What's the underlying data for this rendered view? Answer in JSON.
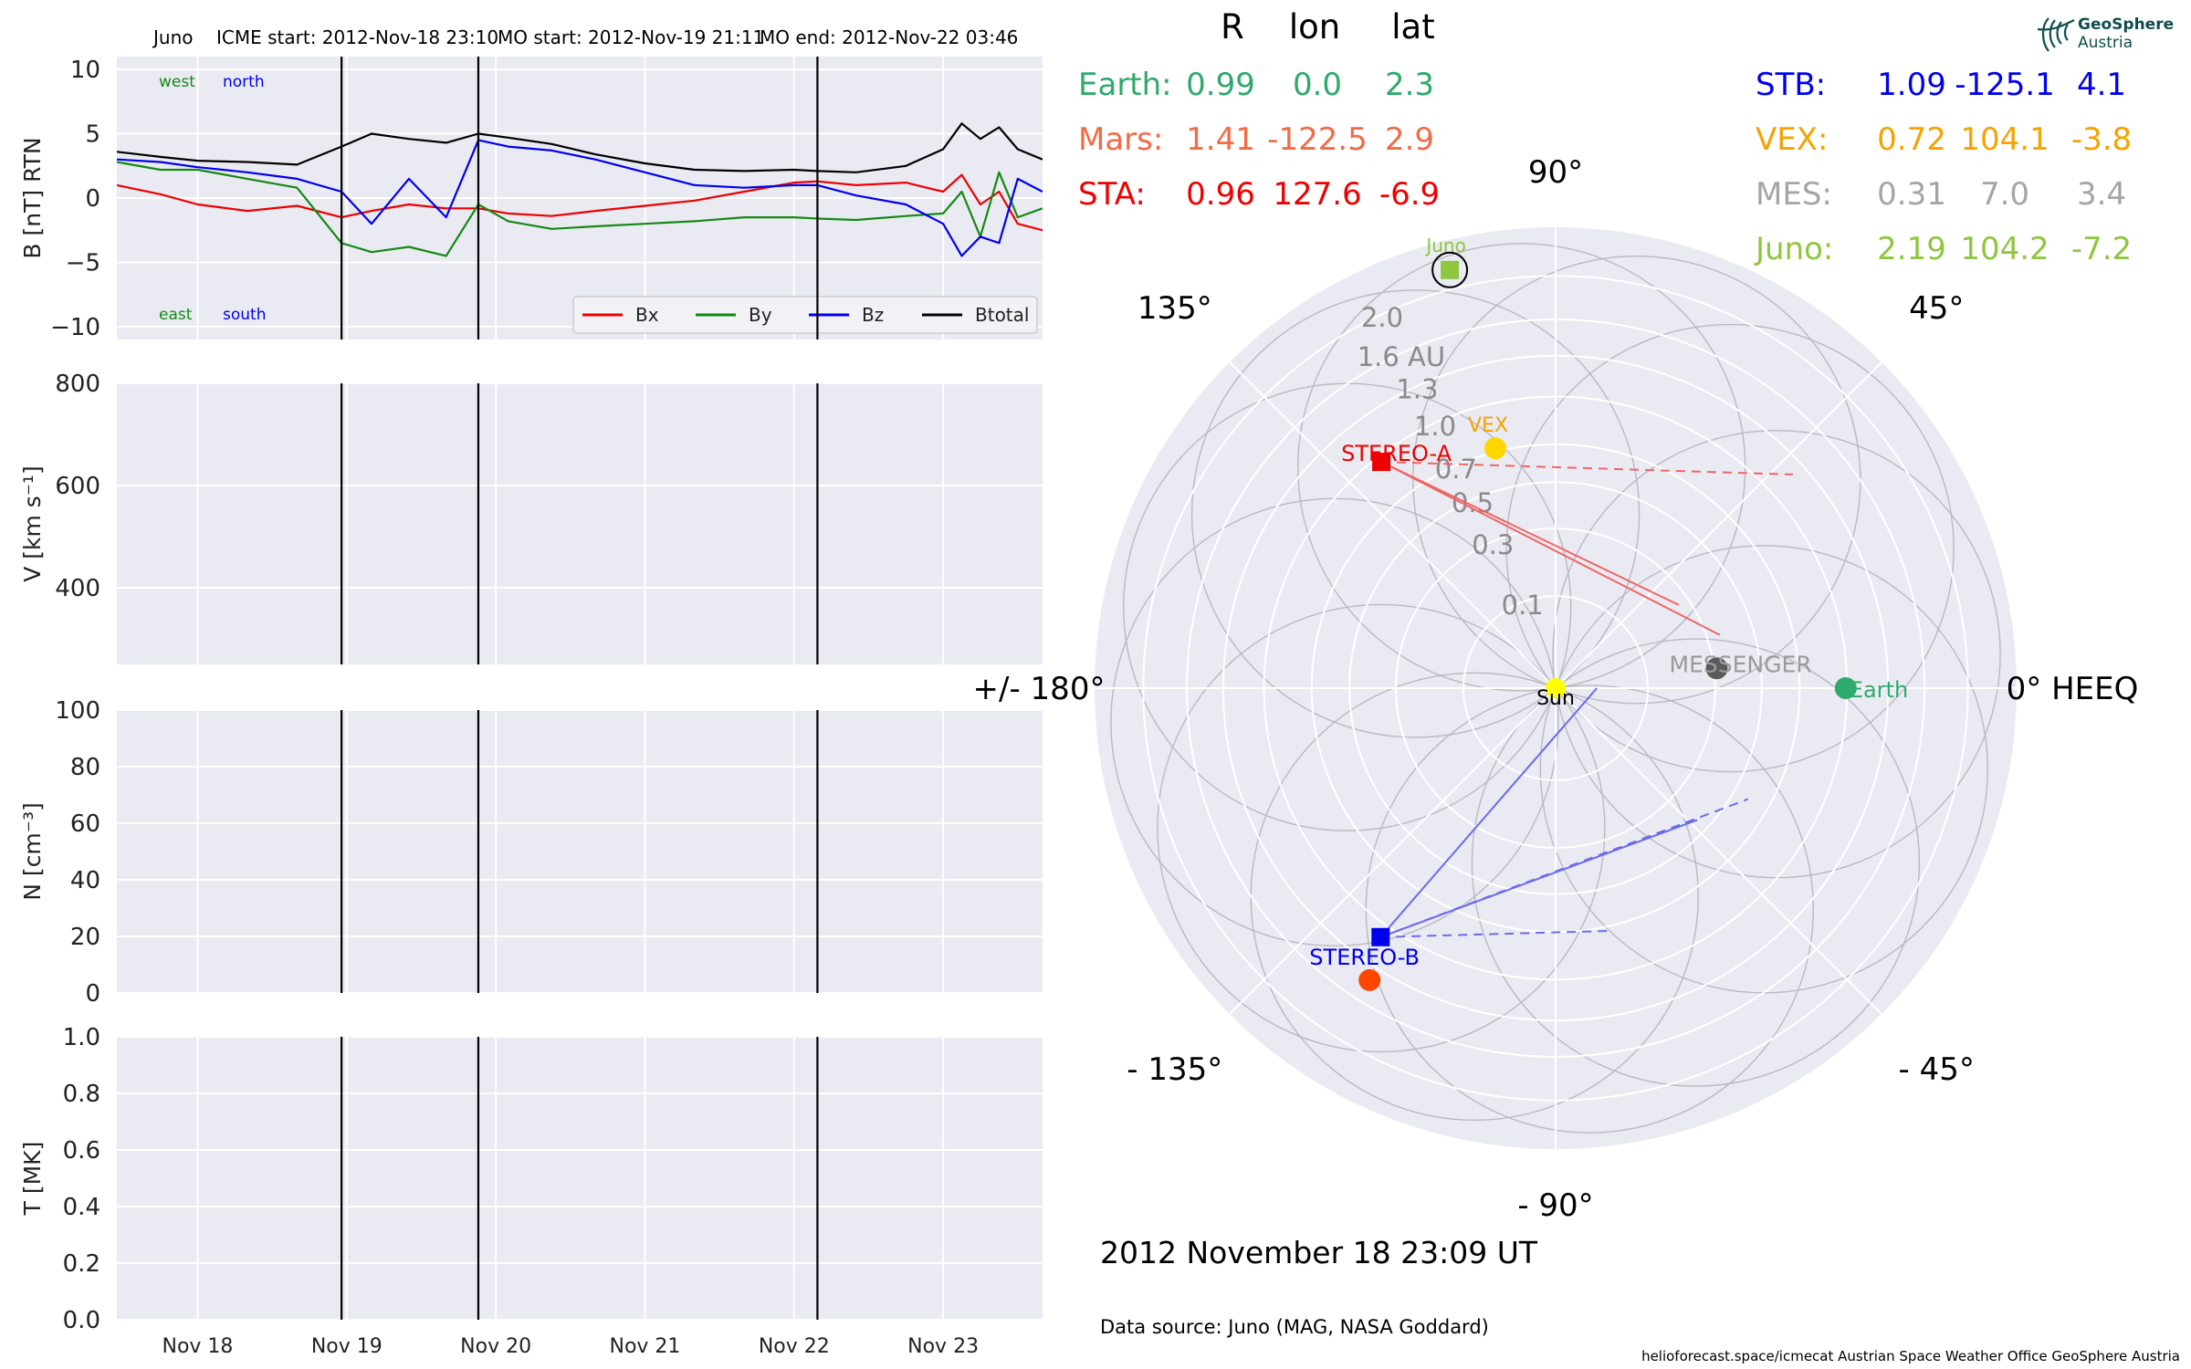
{
  "header": {
    "spacecraft": "Juno",
    "icme_start": "ICME start: 2012-Nov-18 23:10",
    "mo_start": "MO start: 2012-Nov-19 21:11",
    "mo_end": "MO end: 2012-Nov-22 03:46"
  },
  "logo": {
    "line1": "GeoSphere",
    "line2": "Austria"
  },
  "footer": {
    "datetime": "2012 November 18  23:09 UT",
    "source": "Data source: Juno (MAG, NASA Goddard)",
    "credits": "helioforecast.space/icmecat   Austrian Space Weather Office   GeoSphere Austria"
  },
  "positions_table": {
    "headers": [
      "R",
      "lon",
      "lat"
    ],
    "left": [
      {
        "name": "Earth:",
        "r": "0.99",
        "lon": "0.0",
        "lat": "2.3",
        "color": "#2eaa6a"
      },
      {
        "name": "Mars:",
        "r": "1.41",
        "lon": "-122.5",
        "lat": "2.9",
        "color": "#f26b45"
      },
      {
        "name": "STA:",
        "r": "0.96",
        "lon": "127.6",
        "lat": "-6.9",
        "color": "#ee0000"
      }
    ],
    "right": [
      {
        "name": "STB:",
        "r": "1.09",
        "lon": "-125.1",
        "lat": "4.1",
        "color": "#0000ee"
      },
      {
        "name": "VEX:",
        "r": "0.72",
        "lon": "104.1",
        "lat": "-3.8",
        "color": "#f5a300"
      },
      {
        "name": "MES:",
        "r": "0.31",
        "lon": "7.0",
        "lat": "3.4",
        "color": "#a5a5a5"
      },
      {
        "name": "Juno:",
        "r": "2.19",
        "lon": "104.2",
        "lat": "-7.2",
        "color": "#8ec63f"
      }
    ]
  },
  "chart_data": [
    {
      "type": "line",
      "panel": "magnetic_field",
      "ylabel": "B [nT] RTN",
      "ylim": [
        -11,
        11
      ],
      "yticks": [
        "10",
        "5",
        "0",
        "−5",
        "−10"
      ],
      "ytick_values": [
        10,
        5,
        0,
        -5,
        -10
      ],
      "x_range_days": [
        "2012-11-17T11:00",
        "2012-11-23T16:00"
      ],
      "xtick_labels": [
        "Nov 18",
        "Nov 19",
        "Nov 20",
        "Nov 21",
        "Nov 22",
        "Nov 23"
      ],
      "xtick_dates": [
        "2012-11-18",
        "2012-11-19",
        "2012-11-20",
        "2012-11-21",
        "2012-11-22",
        "2012-11-23"
      ],
      "event_lines": [
        "2012-11-18T23:10",
        "2012-11-19T21:11",
        "2012-11-22T03:46"
      ],
      "annotations": {
        "top_left": "west",
        "top_right": "north",
        "bottom_left": "east",
        "bottom_right": "south"
      },
      "legend": [
        "Bx",
        "By",
        "Bz",
        "Btotal"
      ],
      "legend_position": "lower-right",
      "grid": true,
      "series": [
        {
          "name": "Btotal",
          "color": "#000000",
          "x": [
            "2012-11-17T11:00",
            "2012-11-17T18:00",
            "2012-11-18T00:00",
            "2012-11-18T08:00",
            "2012-11-18T16:00",
            "2012-11-18T23:10",
            "2012-11-19T04:00",
            "2012-11-19T10:00",
            "2012-11-19T16:00",
            "2012-11-19T21:11",
            "2012-11-20T02:00",
            "2012-11-20T09:00",
            "2012-11-20T16:00",
            "2012-11-21T00:00",
            "2012-11-21T08:00",
            "2012-11-21T16:00",
            "2012-11-22T00:00",
            "2012-11-22T03:46",
            "2012-11-22T10:00",
            "2012-11-22T18:00",
            "2012-11-23T00:00",
            "2012-11-23T03:00",
            "2012-11-23T06:00",
            "2012-11-23T09:00",
            "2012-11-23T12:00",
            "2012-11-23T16:00"
          ],
          "y": [
            3.6,
            3.2,
            2.9,
            2.8,
            2.6,
            4.0,
            5.0,
            4.6,
            4.3,
            5.0,
            4.7,
            4.2,
            3.4,
            2.7,
            2.2,
            2.1,
            2.2,
            2.1,
            2.0,
            2.5,
            3.8,
            5.8,
            4.6,
            5.5,
            3.8,
            3.0
          ]
        },
        {
          "name": "Bx",
          "color": "#ee0000",
          "x": [
            "2012-11-17T11:00",
            "2012-11-17T18:00",
            "2012-11-18T00:00",
            "2012-11-18T08:00",
            "2012-11-18T16:00",
            "2012-11-18T23:10",
            "2012-11-19T04:00",
            "2012-11-19T10:00",
            "2012-11-19T16:00",
            "2012-11-19T21:11",
            "2012-11-20T02:00",
            "2012-11-20T09:00",
            "2012-11-20T16:00",
            "2012-11-21T00:00",
            "2012-11-21T08:00",
            "2012-11-21T16:00",
            "2012-11-22T00:00",
            "2012-11-22T03:46",
            "2012-11-22T10:00",
            "2012-11-22T18:00",
            "2012-11-23T00:00",
            "2012-11-23T03:00",
            "2012-11-23T06:00",
            "2012-11-23T09:00",
            "2012-11-23T12:00",
            "2012-11-23T16:00"
          ],
          "y": [
            1.0,
            0.3,
            -0.5,
            -1.0,
            -0.6,
            -1.5,
            -1.0,
            -0.5,
            -0.8,
            -0.8,
            -1.2,
            -1.4,
            -1.0,
            -0.6,
            -0.2,
            0.5,
            1.2,
            1.3,
            1.0,
            1.2,
            0.5,
            1.8,
            -0.5,
            0.5,
            -2.0,
            -2.5
          ]
        },
        {
          "name": "By",
          "color": "#138a13",
          "x": [
            "2012-11-17T11:00",
            "2012-11-17T18:00",
            "2012-11-18T00:00",
            "2012-11-18T08:00",
            "2012-11-18T16:00",
            "2012-11-18T23:10",
            "2012-11-19T04:00",
            "2012-11-19T10:00",
            "2012-11-19T16:00",
            "2012-11-19T21:11",
            "2012-11-20T02:00",
            "2012-11-20T09:00",
            "2012-11-20T16:00",
            "2012-11-21T00:00",
            "2012-11-21T08:00",
            "2012-11-21T16:00",
            "2012-11-22T00:00",
            "2012-11-22T03:46",
            "2012-11-22T10:00",
            "2012-11-22T18:00",
            "2012-11-23T00:00",
            "2012-11-23T03:00",
            "2012-11-23T06:00",
            "2012-11-23T09:00",
            "2012-11-23T12:00",
            "2012-11-23T16:00"
          ],
          "y": [
            2.8,
            2.2,
            2.2,
            1.5,
            0.8,
            -3.5,
            -4.2,
            -3.8,
            -4.5,
            -0.5,
            -1.8,
            -2.4,
            -2.2,
            -2.0,
            -1.8,
            -1.5,
            -1.5,
            -1.6,
            -1.7,
            -1.4,
            -1.2,
            0.5,
            -3.0,
            2.0,
            -1.5,
            -0.8
          ]
        },
        {
          "name": "Bz",
          "color": "#0000ee",
          "x": [
            "2012-11-17T11:00",
            "2012-11-17T18:00",
            "2012-11-18T00:00",
            "2012-11-18T08:00",
            "2012-11-18T16:00",
            "2012-11-18T23:10",
            "2012-11-19T04:00",
            "2012-11-19T10:00",
            "2012-11-19T16:00",
            "2012-11-19T21:11",
            "2012-11-20T02:00",
            "2012-11-20T09:00",
            "2012-11-20T16:00",
            "2012-11-21T00:00",
            "2012-11-21T08:00",
            "2012-11-21T16:00",
            "2012-11-22T00:00",
            "2012-11-22T03:46",
            "2012-11-22T10:00",
            "2012-11-22T18:00",
            "2012-11-23T00:00",
            "2012-11-23T03:00",
            "2012-11-23T06:00",
            "2012-11-23T09:00",
            "2012-11-23T12:00",
            "2012-11-23T16:00"
          ],
          "y": [
            3.0,
            2.8,
            2.4,
            2.0,
            1.5,
            0.5,
            -2.0,
            1.5,
            -1.5,
            4.5,
            4.0,
            3.7,
            3.0,
            2.0,
            1.0,
            0.8,
            1.0,
            1.0,
            0.2,
            -0.5,
            -2.0,
            -4.5,
            -3.0,
            -3.5,
            1.5,
            0.5
          ]
        }
      ]
    },
    {
      "type": "line",
      "panel": "speed",
      "ylabel": "V [km s⁻¹]",
      "ylim": [
        250,
        800
      ],
      "yticks": [
        "800",
        "600",
        "400"
      ],
      "ytick_values": [
        800,
        600,
        400
      ],
      "series": []
    },
    {
      "type": "line",
      "panel": "density",
      "ylabel": "N [cm⁻³]",
      "ylim": [
        0,
        100
      ],
      "yticks": [
        "100",
        "80",
        "60",
        "40",
        "20",
        "0"
      ],
      "ytick_values": [
        100,
        80,
        60,
        40,
        20,
        0
      ],
      "series": []
    },
    {
      "type": "line",
      "panel": "temperature",
      "ylabel": "T [MK]",
      "ylim": [
        0,
        1
      ],
      "yticks": [
        "1.0",
        "0.8",
        "0.6",
        "0.4",
        "0.2",
        "0.0"
      ],
      "ytick_values": [
        1.0,
        0.8,
        0.6,
        0.4,
        0.2,
        0.0
      ],
      "series": []
    },
    {
      "type": "scatter",
      "panel": "polar_positions",
      "r_ticks": [
        0.1,
        0.3,
        0.5,
        0.7,
        1.0,
        1.3,
        1.6,
        2.0
      ],
      "r_tick_labels": [
        "0.1",
        "0.3",
        "0.5",
        "0.7",
        "1.0",
        "1.3",
        "1.6 AU",
        "2.0"
      ],
      "rmax": 2.5,
      "angle_labels": [
        {
          "deg": 0,
          "label": "0° HEEQ"
        },
        {
          "deg": 45,
          "label": "45°"
        },
        {
          "deg": 90,
          "label": "90°"
        },
        {
          "deg": 135,
          "label": "135°"
        },
        {
          "deg": 180,
          "label": "+/- 180°"
        },
        {
          "deg": 225,
          "label": "- 135°"
        },
        {
          "deg": 270,
          "label": "- 90°"
        },
        {
          "deg": 315,
          "label": "- 45°"
        }
      ],
      "bodies": [
        {
          "name": "Sun",
          "label": "Sun",
          "r": 0.0,
          "lon": 0.0,
          "color": "#ffff00",
          "marker": "circle",
          "label_color": "#000000"
        },
        {
          "name": "Earth",
          "label": "Earth",
          "r": 0.99,
          "lon": 0.0,
          "color": "#2eaa6a",
          "marker": "circle",
          "label_color": "#2eaa6a"
        },
        {
          "name": "Mars",
          "label": "",
          "r": 1.41,
          "lon": -122.5,
          "color": "#ff4500",
          "marker": "circle",
          "label_color": "#ff4500"
        },
        {
          "name": "MESSENGER",
          "label": "MESSENGER",
          "r": 0.31,
          "lon": 7.0,
          "color": "#5a5a5a",
          "marker": "circle",
          "label_color": "#9a9a9a"
        },
        {
          "name": "VEX",
          "label": "VEX",
          "r": 0.72,
          "lon": 104.1,
          "color": "#ffd700",
          "marker": "circle",
          "label_color": "#f5a300"
        },
        {
          "name": "STEREO-A",
          "label": "STEREO-A",
          "r": 0.96,
          "lon": 127.6,
          "color": "#ee0000",
          "marker": "square",
          "label_color": "#ee0000"
        },
        {
          "name": "STEREO-B",
          "label": "STEREO-B",
          "r": 1.09,
          "lon": -125.1,
          "color": "#0000ee",
          "marker": "square",
          "label_color": "#0000ee"
        },
        {
          "name": "Juno",
          "label": "Juno",
          "r": 2.19,
          "lon": 104.2,
          "color": "#8ec63f",
          "marker": "square-circled",
          "label_color": "#8ec63f"
        }
      ],
      "fields_of_view": [
        {
          "from": "STEREO-A",
          "color": "#ee6666",
          "solid_ends": [
            [
              0.35,
              18
            ],
            [
              0.26,
              34
            ]
          ],
          "dashed_ends": [
            [
              1.2,
              42
            ]
          ]
        },
        {
          "from": "STEREO-B",
          "color": "#6b6bee",
          "solid_ends": [
            [
              0.02,
              0
            ],
            [
              0.44,
              -43
            ]
          ],
          "dashed_ends": [
            [
              0.58,
              -30
            ],
            [
              0.73,
              -77
            ]
          ]
        }
      ]
    }
  ]
}
